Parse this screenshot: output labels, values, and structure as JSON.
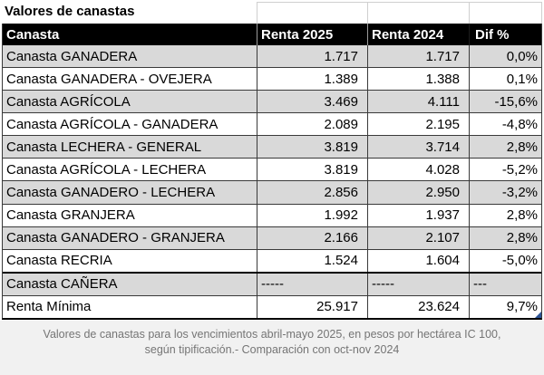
{
  "title": "Valores de canastas",
  "table": {
    "columns": [
      "Canasta",
      "Renta 2025",
      "Renta 2024",
      "Dif %"
    ],
    "rows": [
      [
        "Canasta GANADERA",
        "1.717",
        "1.717",
        "0,0%"
      ],
      [
        "Canasta GANADERA - OVEJERA",
        "1.389",
        "1.388",
        "0,1%"
      ],
      [
        "Canasta AGRÍCOLA",
        "3.469",
        "4.111",
        "-15,6%"
      ],
      [
        "Canasta AGRÍCOLA - GANADERA",
        "2.089",
        "2.195",
        "-4,8%"
      ],
      [
        "Canasta LECHERA - GENERAL",
        "3.819",
        "3.714",
        "2,8%"
      ],
      [
        "Canasta AGRÍCOLA - LECHERA",
        "3.819",
        "4.028",
        "-5,2%"
      ],
      [
        "Canasta GANADERO - LECHERA",
        "2.856",
        "2.950",
        "-3,2%"
      ],
      [
        "Canasta GRANJERA",
        "1.992",
        "1.937",
        "2,8%"
      ],
      [
        "Canasta GANADERO - GRANJERA",
        "2.166",
        "2.107",
        "2,8%"
      ],
      [
        "Canasta RECRIA",
        "1.524",
        "1.604",
        "-5,0%"
      ],
      [
        "Canasta CAÑERA",
        "-----",
        "-----",
        "---"
      ],
      [
        "Renta Mínima",
        "25.917",
        "23.624",
        "9,7%"
      ]
    ]
  },
  "footer": {
    "line1": "Valores de canastas para los vencimientos abril-mayo 2025, en pesos por hectárea IC 100,",
    "line2": "según tipificación.- Comparación con oct-nov 2024"
  },
  "colors": {
    "header_bg": "#000000",
    "header_text": "#ffffff",
    "row_alt_bg": "#d9d9d9",
    "grid_border": "#3a3a3a",
    "footer_bg": "#f1f1f1",
    "footer_text": "#757575",
    "fill_handle": "#2e5496",
    "gridline": "#cfcfcf"
  }
}
